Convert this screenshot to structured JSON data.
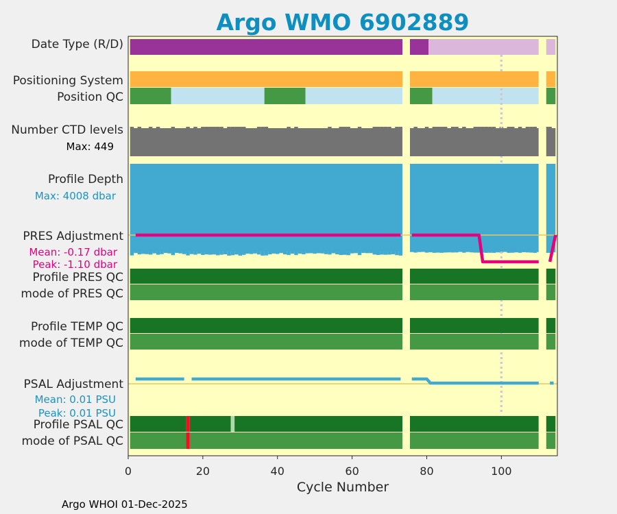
{
  "chart_data": {
    "type": "timeline",
    "title": "Argo WMO 6902889",
    "xlabel": "Cycle Number",
    "xlim": [
      0,
      115
    ],
    "xticks": [
      0,
      20,
      40,
      60,
      80,
      100
    ],
    "gaps": [
      [
        73.5,
        75.5
      ],
      [
        110,
        112
      ]
    ],
    "dashed_marker_x": 100,
    "footer": "Argo WHOI 01-Dec-2025",
    "colors": {
      "background": "#ffffc0",
      "purple": "#993399",
      "light_purple": "#dbb8db",
      "orange": "#ffb340",
      "green": "#469944",
      "dark_green": "#177525",
      "light_blue": "#c1e2ef",
      "grey": "#737373",
      "blue": "#42aad0",
      "magenta": "#e6007e",
      "red": "#ee1122",
      "pale_green": "#b0d8a8",
      "ref_line": "#e6c864",
      "title": "#0f8fbf"
    },
    "rows": {
      "date_type": {
        "label": "Date Type (R/D)",
        "segments": [
          {
            "from": 0.5,
            "to": 73.5,
            "color": "purple"
          },
          {
            "from": 75.5,
            "to": 80.5,
            "color": "purple"
          },
          {
            "from": 80.5,
            "to": 110,
            "color": "light_purple"
          },
          {
            "from": 112,
            "to": 114.5,
            "color": "light_purple"
          }
        ]
      },
      "positioning_system": {
        "label": "Positioning System",
        "segments": [
          {
            "from": 0.5,
            "to": 73.5,
            "color": "orange"
          },
          {
            "from": 75.5,
            "to": 110,
            "color": "orange"
          },
          {
            "from": 112,
            "to": 114.5,
            "color": "orange"
          }
        ]
      },
      "position_qc": {
        "label": "Position QC",
        "segments": [
          {
            "from": 0.5,
            "to": 11.5,
            "color": "green"
          },
          {
            "from": 11.5,
            "to": 36.5,
            "color": "light_blue"
          },
          {
            "from": 36.5,
            "to": 47.5,
            "color": "green"
          },
          {
            "from": 47.5,
            "to": 73.5,
            "color": "light_blue"
          },
          {
            "from": 75.5,
            "to": 81.5,
            "color": "green"
          },
          {
            "from": 81.5,
            "to": 110,
            "color": "light_blue"
          },
          {
            "from": 112,
            "to": 114.5,
            "color": "green"
          }
        ]
      },
      "ctd_levels": {
        "label": "Number CTD levels",
        "max_label": "Max: 449",
        "max": 449,
        "range": [
          0.5,
          114.5
        ],
        "value_min": 435,
        "value_max": 449
      },
      "profile_depth": {
        "label": "Profile Depth",
        "max_label": "Max: 4008 dbar",
        "max": 4008,
        "range": [
          0.5,
          114.5
        ],
        "value_min": 3880,
        "value_max": 4008
      },
      "pres_adjustment": {
        "label": "PRES Adjustment",
        "mean_label": "Mean: -0.17 dbar",
        "peak_label": "Peak: -1.10 dbar",
        "x": [
          2,
          73,
          76,
          94,
          95,
          110,
          113,
          114.5
        ],
        "y": [
          0,
          0,
          0,
          0,
          -1.1,
          -1.1,
          -1.1,
          0
        ],
        "ylim": [
          -1.1,
          0
        ]
      },
      "profile_pres_qc": {
        "label": "Profile PRES QC",
        "segments": [
          {
            "from": 0.5,
            "to": 73.5,
            "color": "dark_green"
          },
          {
            "from": 75.5,
            "to": 110,
            "color": "dark_green"
          },
          {
            "from": 112,
            "to": 114.5,
            "color": "dark_green"
          }
        ]
      },
      "mode_pres_qc": {
        "label": "mode of PRES QC",
        "segments": [
          {
            "from": 0.5,
            "to": 73.5,
            "color": "green"
          },
          {
            "from": 75.5,
            "to": 110,
            "color": "green"
          },
          {
            "from": 112,
            "to": 114.5,
            "color": "green"
          }
        ]
      },
      "profile_temp_qc": {
        "label": "Profile TEMP QC",
        "segments": [
          {
            "from": 0.5,
            "to": 73.5,
            "color": "dark_green"
          },
          {
            "from": 75.5,
            "to": 110,
            "color": "dark_green"
          },
          {
            "from": 112,
            "to": 114.5,
            "color": "dark_green"
          }
        ]
      },
      "mode_temp_qc": {
        "label": "mode of TEMP QC",
        "segments": [
          {
            "from": 0.5,
            "to": 73.5,
            "color": "green"
          },
          {
            "from": 75.5,
            "to": 110,
            "color": "green"
          },
          {
            "from": 112,
            "to": 114.5,
            "color": "green"
          }
        ]
      },
      "psal_adjustment": {
        "label": "PSAL Adjustment",
        "mean_label": "Mean: 0.01 PSU",
        "peak_label": "Peak: 0.01 PSU",
        "ylim": [
          0,
          0.01
        ],
        "lines": [
          {
            "x": [
              2,
              15
            ],
            "y": [
              0.01,
              0.01
            ]
          },
          {
            "x": [
              17,
              73
            ],
            "y": [
              0.01,
              0.01
            ]
          },
          {
            "x": [
              76,
              80,
              81,
              110
            ],
            "y": [
              0.01,
              0.01,
              0.0,
              0.0
            ]
          },
          {
            "x": [
              113,
              114
            ],
            "y": [
              0.0,
              0.0
            ]
          }
        ]
      },
      "profile_psal_qc": {
        "label": "Profile PSAL QC",
        "segments": [
          {
            "from": 0.5,
            "to": 15.5,
            "color": "dark_green"
          },
          {
            "from": 15.5,
            "to": 16.5,
            "color": "red"
          },
          {
            "from": 16.5,
            "to": 27.5,
            "color": "dark_green"
          },
          {
            "from": 27.5,
            "to": 28.5,
            "color": "pale_green"
          },
          {
            "from": 28.5,
            "to": 73.5,
            "color": "dark_green"
          },
          {
            "from": 75.5,
            "to": 110,
            "color": "dark_green"
          },
          {
            "from": 112,
            "to": 114.5,
            "color": "dark_green"
          }
        ]
      },
      "mode_psal_qc": {
        "label": "mode of PSAL QC",
        "segments": [
          {
            "from": 0.5,
            "to": 15.5,
            "color": "green"
          },
          {
            "from": 15.5,
            "to": 16.5,
            "color": "red"
          },
          {
            "from": 16.5,
            "to": 73.5,
            "color": "green"
          },
          {
            "from": 75.5,
            "to": 110,
            "color": "green"
          },
          {
            "from": 112,
            "to": 114.5,
            "color": "green"
          }
        ]
      }
    }
  }
}
